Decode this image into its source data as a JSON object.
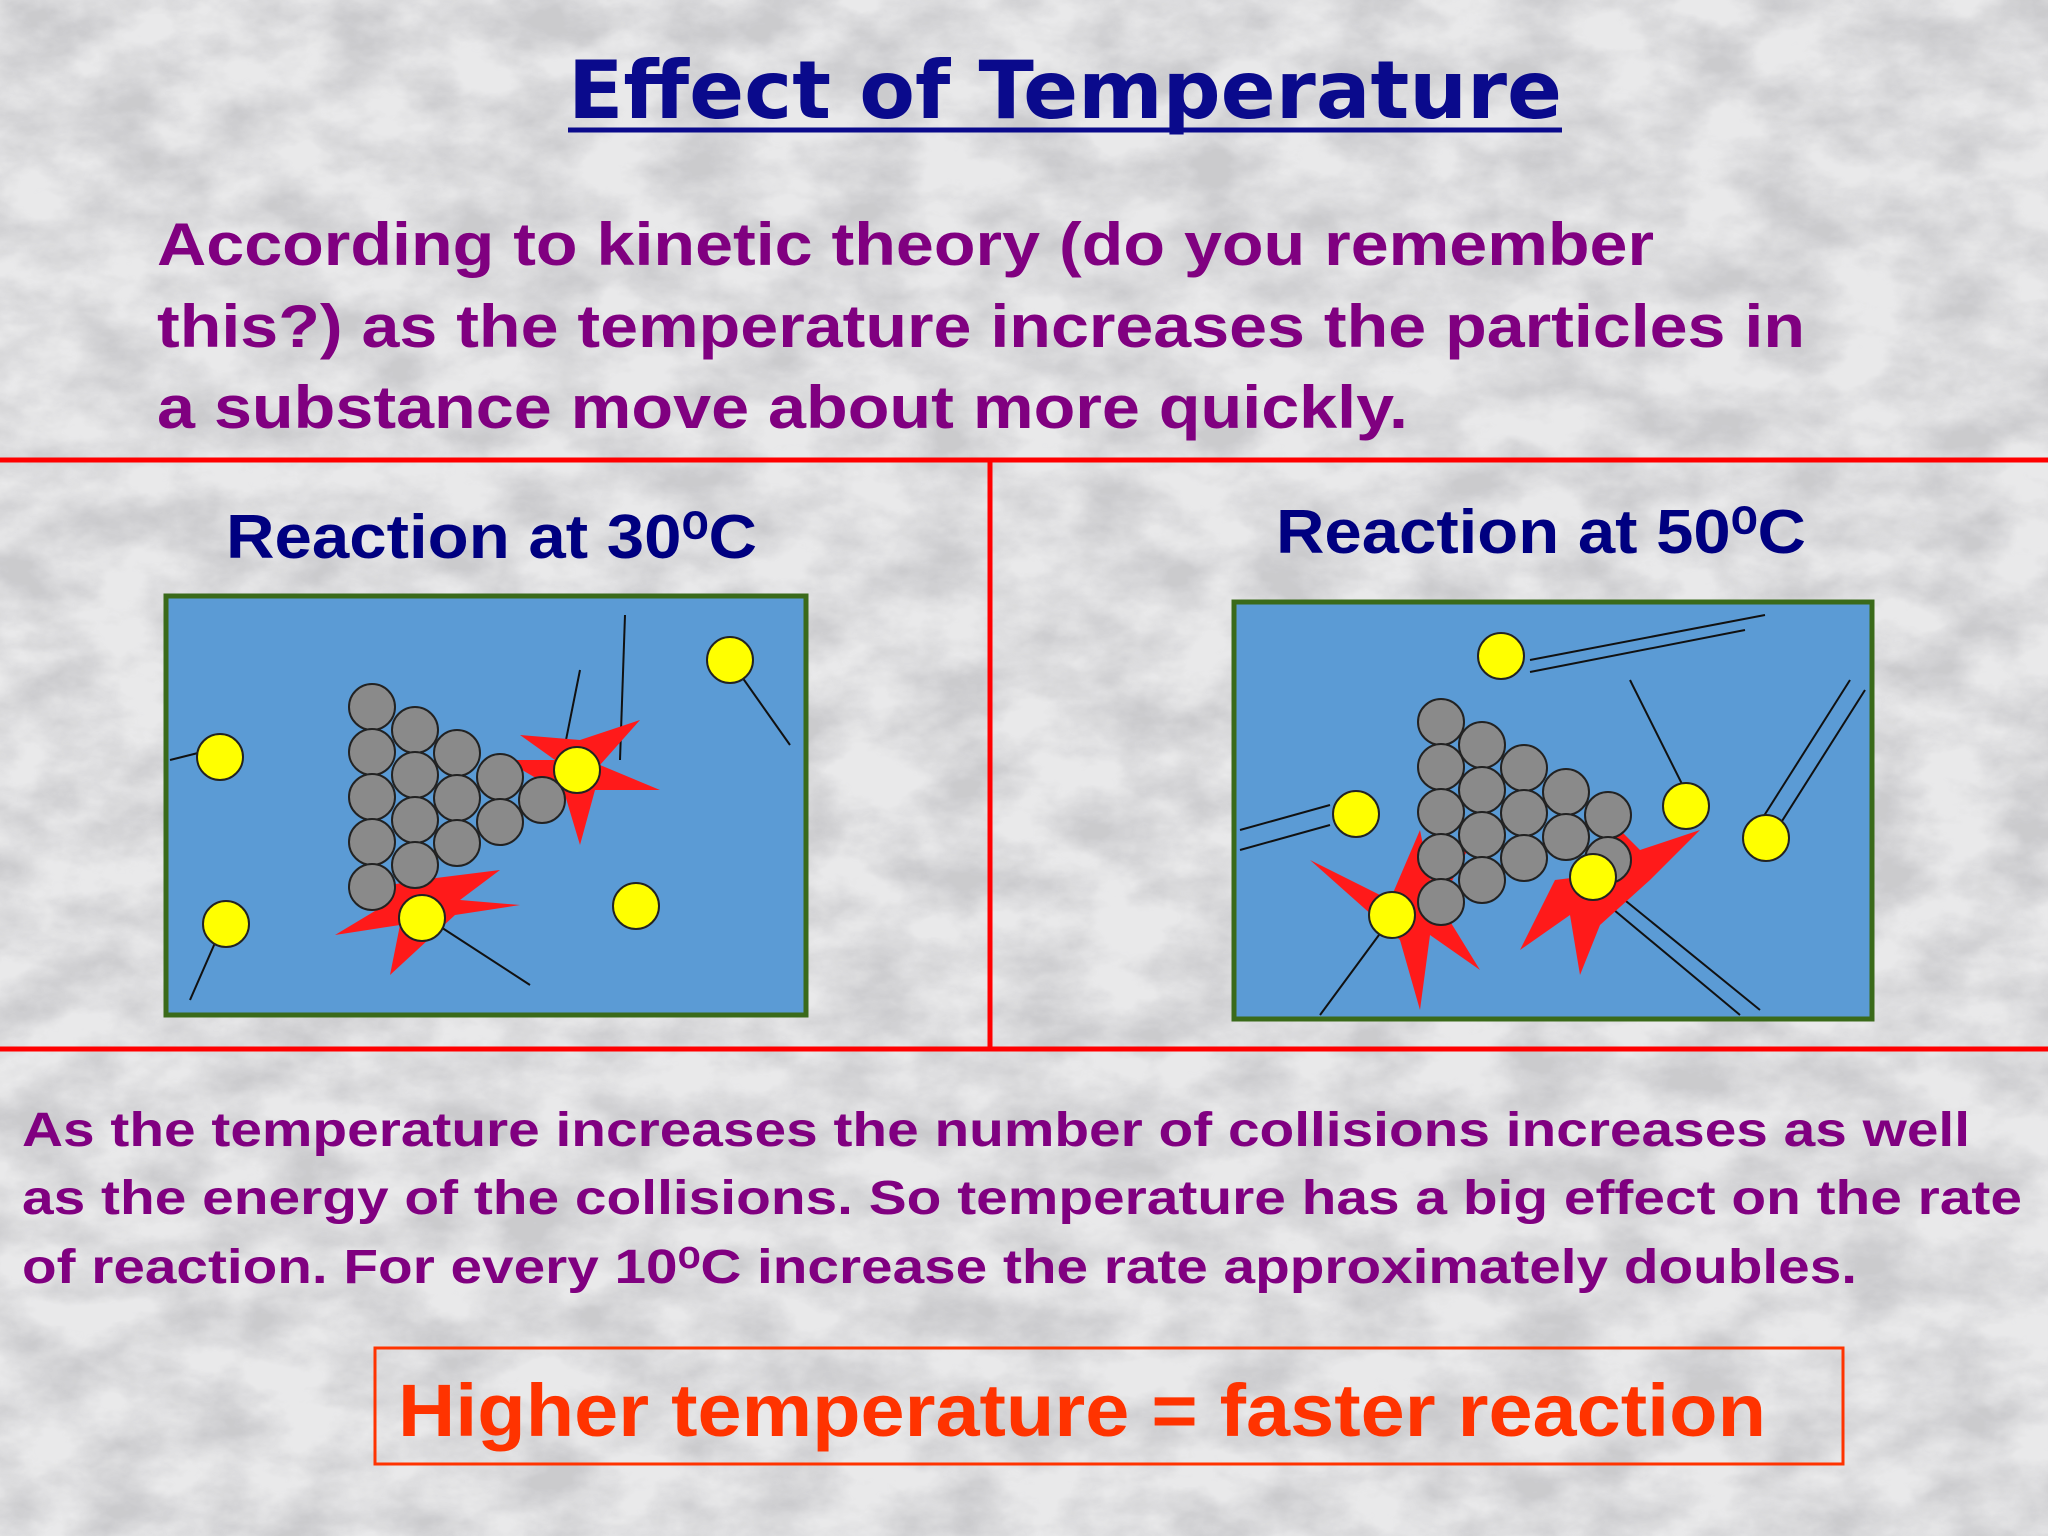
{
  "header": {
    "title": "Effect of Temperature"
  },
  "intro": {
    "lines": [
      "According to kinetic theory (do you remember",
      "this?) as the temperature increases the particles in",
      "a substance move about more quickly."
    ]
  },
  "panels": [
    {
      "heading": "Reaction at 30⁰C"
    },
    {
      "heading": "Reaction at 50⁰C"
    }
  ],
  "explanation": {
    "lines": [
      "As the temperature increases the number of collisions increases as well",
      "as the energy of the collisions. So temperature has a big effect on the rate",
      "of reaction. For every 10⁰C increase the rate approximately doubles."
    ]
  },
  "summary": "Higher temperature = faster reaction"
}
